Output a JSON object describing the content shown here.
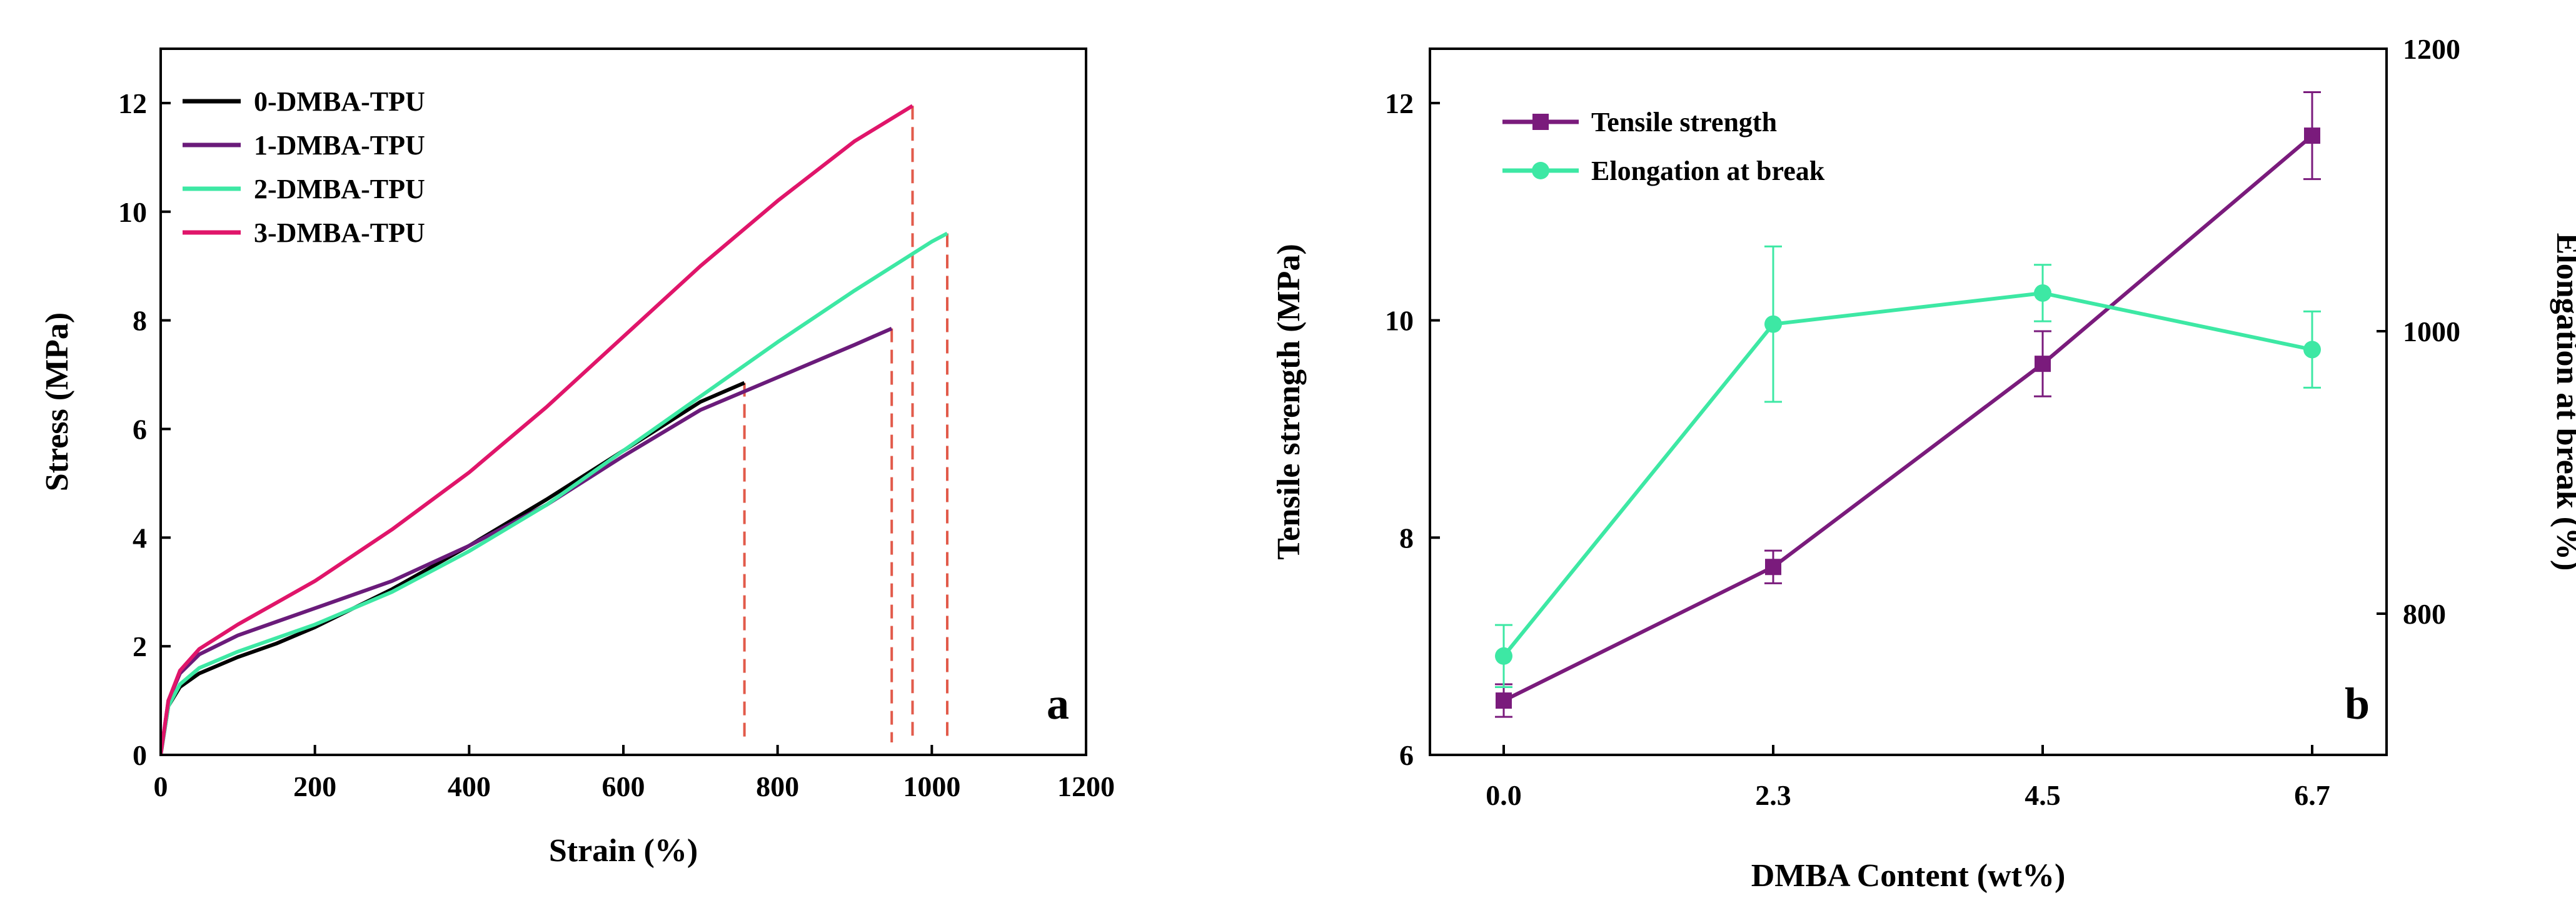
{
  "chart_data": [
    {
      "type": "line",
      "panel_label": "a",
      "xlabel": "Strain (%)",
      "ylabel": "Stress (MPa)",
      "xlim": [
        0,
        1200
      ],
      "ylim": [
        0,
        13
      ],
      "xticks": [
        0,
        200,
        400,
        600,
        800,
        1000,
        1200
      ],
      "yticks": [
        0,
        2,
        4,
        6,
        8,
        10,
        12
      ],
      "legend_position": "top-left",
      "series": [
        {
          "name": "0-DMBA-TPU",
          "color": "#000000",
          "x": [
            0,
            10,
            25,
            50,
            100,
            150,
            200,
            300,
            400,
            500,
            600,
            700,
            757
          ],
          "y": [
            0,
            0.9,
            1.25,
            1.5,
            1.8,
            2.05,
            2.35,
            3.05,
            3.85,
            4.7,
            5.6,
            6.5,
            6.85
          ],
          "break_x": 757
        },
        {
          "name": "1-DMBA-TPU",
          "color": "#6a1b7a",
          "x": [
            0,
            10,
            25,
            50,
            100,
            150,
            200,
            300,
            400,
            500,
            600,
            700,
            800,
            900,
            948
          ],
          "y": [
            0,
            1.0,
            1.5,
            1.85,
            2.2,
            2.45,
            2.7,
            3.2,
            3.85,
            4.6,
            5.5,
            6.35,
            6.95,
            7.55,
            7.85
          ],
          "break_x": 948
        },
        {
          "name": "2-DMBA-TPU",
          "color": "#3de8a4",
          "x": [
            0,
            10,
            25,
            50,
            100,
            150,
            200,
            300,
            400,
            500,
            600,
            700,
            800,
            900,
            1000,
            1020
          ],
          "y": [
            0,
            0.9,
            1.3,
            1.6,
            1.9,
            2.15,
            2.4,
            3.0,
            3.75,
            4.6,
            5.6,
            6.6,
            7.6,
            8.55,
            9.45,
            9.6
          ],
          "break_x": 1020
        },
        {
          "name": "3-DMBA-TPU",
          "color": "#e0156a",
          "x": [
            0,
            10,
            25,
            50,
            100,
            150,
            200,
            300,
            400,
            500,
            600,
            700,
            800,
            900,
            975
          ],
          "y": [
            0,
            1.0,
            1.55,
            1.95,
            2.4,
            2.8,
            3.2,
            4.15,
            5.2,
            6.4,
            7.7,
            9.0,
            10.2,
            11.3,
            11.95
          ],
          "break_x": 975
        }
      ]
    },
    {
      "type": "line",
      "panel_label": "b",
      "xlabel": "DMBA Content (wt%)",
      "ylabel": "Tensile strength (MPa)",
      "y2label": "Elongation at break (%)",
      "categories": [
        "0.0",
        "2.3",
        "4.5",
        "6.7"
      ],
      "ylim": [
        6,
        12.5
      ],
      "yticks": [
        6,
        8,
        10,
        12
      ],
      "y2lim": [
        700,
        1200
      ],
      "y2ticks": [
        800,
        1000,
        1200
      ],
      "legend_position": "top-left",
      "series": [
        {
          "name": "Tensile strength",
          "axis": "left",
          "color": "#7a1b7c",
          "marker": "square",
          "values": [
            6.5,
            7.73,
            9.6,
            11.7
          ],
          "errors": [
            0.15,
            0.15,
            0.3,
            0.4
          ]
        },
        {
          "name": "Elongation at break",
          "axis": "right",
          "color": "#3de8a4",
          "marker": "circle",
          "values": [
            770,
            1005,
            1027,
            987
          ],
          "errors": [
            22,
            55,
            20,
            27
          ]
        }
      ]
    }
  ]
}
